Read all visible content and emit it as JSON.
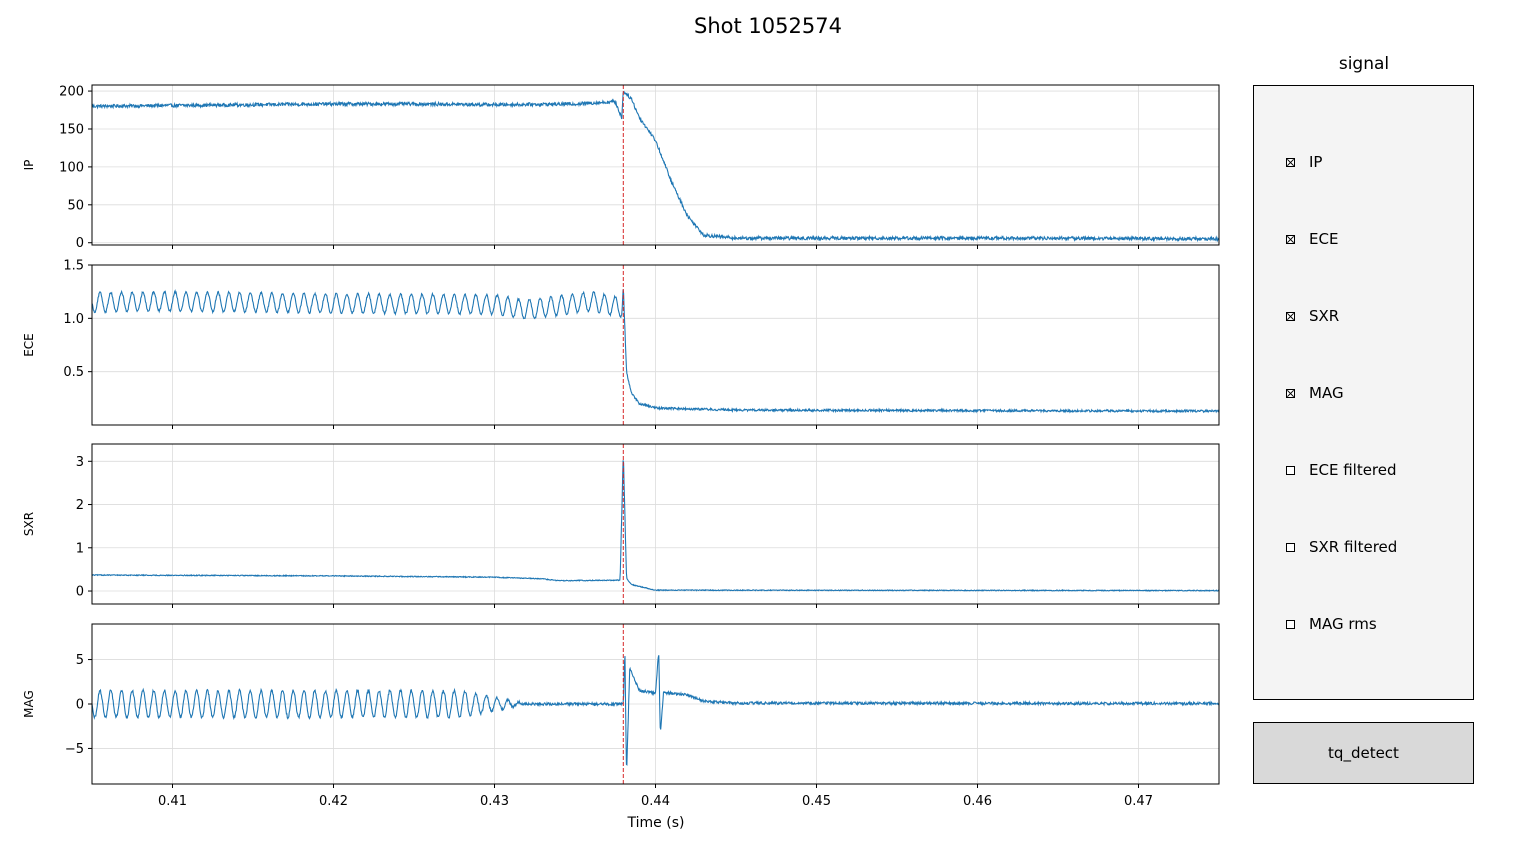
{
  "figure": {
    "title": "Shot 1052574"
  },
  "chart_data": [
    {
      "type": "line",
      "name": "IP",
      "ylabel": "IP",
      "xlim": [
        0.405,
        0.475
      ],
      "ylim": [
        -3,
        208
      ],
      "yticks": [
        0,
        50,
        100,
        150,
        200
      ],
      "ytick_labels": [
        "0",
        "50",
        "100",
        "150",
        "200"
      ],
      "xticks": [
        0.41,
        0.42,
        0.43,
        0.44,
        0.45,
        0.46,
        0.47
      ],
      "grid": true,
      "points": [
        [
          0.405,
          180
        ],
        [
          0.41,
          181
        ],
        [
          0.415,
          182
        ],
        [
          0.42,
          183
        ],
        [
          0.425,
          183
        ],
        [
          0.43,
          182
        ],
        [
          0.435,
          183
        ],
        [
          0.4375,
          186
        ],
        [
          0.4379,
          165
        ],
        [
          0.438,
          200
        ],
        [
          0.4385,
          190
        ],
        [
          0.439,
          165
        ],
        [
          0.44,
          135
        ],
        [
          0.441,
          80
        ],
        [
          0.442,
          35
        ],
        [
          0.443,
          10
        ],
        [
          0.445,
          6
        ],
        [
          0.455,
          6
        ],
        [
          0.465,
          6
        ],
        [
          0.475,
          5
        ]
      ],
      "noise": 2.2,
      "color": "#1f77b4"
    },
    {
      "type": "line",
      "name": "ECE",
      "ylabel": "ECE",
      "xlim": [
        0.405,
        0.475
      ],
      "ylim": [
        0.0,
        1.5
      ],
      "yticks": [
        0.5,
        1.0,
        1.5
      ],
      "ytick_labels": [
        "0.5",
        "1.0",
        "1.5"
      ],
      "xticks": [
        0.41,
        0.42,
        0.43,
        0.44,
        0.45,
        0.46,
        0.47
      ],
      "grid": true,
      "points": [
        [
          0.405,
          1.15
        ],
        [
          0.41,
          1.16
        ],
        [
          0.42,
          1.14
        ],
        [
          0.43,
          1.13
        ],
        [
          0.432,
          1.08
        ],
        [
          0.434,
          1.12
        ],
        [
          0.436,
          1.16
        ],
        [
          0.4379,
          1.1
        ],
        [
          0.438,
          1.3
        ],
        [
          0.4382,
          0.5
        ],
        [
          0.4385,
          0.3
        ],
        [
          0.439,
          0.2
        ],
        [
          0.44,
          0.16
        ],
        [
          0.445,
          0.14
        ],
        [
          0.475,
          0.13
        ]
      ],
      "oscillation": {
        "amplitude": 0.09,
        "end": 0.438
      },
      "noise": 0.01,
      "color": "#1f77b4"
    },
    {
      "type": "line",
      "name": "SXR",
      "ylabel": "SXR",
      "xlim": [
        0.405,
        0.475
      ],
      "ylim": [
        -0.3,
        3.4
      ],
      "yticks": [
        0,
        1,
        2,
        3
      ],
      "ytick_labels": [
        "0",
        "1",
        "2",
        "3"
      ],
      "xticks": [
        0.41,
        0.42,
        0.43,
        0.44,
        0.45,
        0.46,
        0.47
      ],
      "grid": true,
      "points": [
        [
          0.405,
          0.37
        ],
        [
          0.42,
          0.35
        ],
        [
          0.43,
          0.32
        ],
        [
          0.433,
          0.28
        ],
        [
          0.434,
          0.24
        ],
        [
          0.4378,
          0.25
        ],
        [
          0.438,
          3.2
        ],
        [
          0.4382,
          0.3
        ],
        [
          0.4385,
          0.15
        ],
        [
          0.44,
          0.02
        ],
        [
          0.475,
          0.01
        ]
      ],
      "noise": 0.01,
      "color": "#1f77b4"
    },
    {
      "type": "line",
      "name": "MAG",
      "ylabel": "MAG",
      "xlim": [
        0.405,
        0.475
      ],
      "ylim": [
        -9,
        9
      ],
      "yticks": [
        -5,
        0,
        5
      ],
      "ytick_labels": [
        "−5",
        "0",
        "5"
      ],
      "xticks": [
        0.41,
        0.42,
        0.43,
        0.44,
        0.45,
        0.46,
        0.47
      ],
      "grid": true,
      "points": [
        [
          0.405,
          0
        ],
        [
          0.438,
          0
        ],
        [
          0.4381,
          6
        ],
        [
          0.4382,
          -8
        ],
        [
          0.4384,
          4
        ],
        [
          0.439,
          1.5
        ],
        [
          0.44,
          1.2
        ],
        [
          0.4402,
          6
        ],
        [
          0.4403,
          -3.5
        ],
        [
          0.4405,
          1.3
        ],
        [
          0.442,
          1
        ],
        [
          0.443,
          0.3
        ],
        [
          0.445,
          0.1
        ],
        [
          0.475,
          0.05
        ]
      ],
      "oscillation": {
        "amplitude": 1.5,
        "end": 0.432,
        "taper_start": 0.428
      },
      "noise": 0.15,
      "color": "#1f77b4"
    }
  ],
  "x_axis": {
    "label": "Time (s)",
    "tick_labels": [
      "0.41",
      "0.42",
      "0.43",
      "0.44",
      "0.45",
      "0.46",
      "0.47"
    ]
  },
  "marker": {
    "x": 0.438,
    "color": "#d62728",
    "style": "dashed"
  },
  "panel": {
    "title": "signal",
    "items": [
      {
        "label": "IP",
        "checked": true
      },
      {
        "label": "ECE",
        "checked": true
      },
      {
        "label": "SXR",
        "checked": true
      },
      {
        "label": "MAG",
        "checked": true
      },
      {
        "label": "ECE filtered",
        "checked": false
      },
      {
        "label": "SXR filtered",
        "checked": false
      },
      {
        "label": "MAG rms",
        "checked": false
      }
    ]
  },
  "button": {
    "label": "tq_detect"
  }
}
